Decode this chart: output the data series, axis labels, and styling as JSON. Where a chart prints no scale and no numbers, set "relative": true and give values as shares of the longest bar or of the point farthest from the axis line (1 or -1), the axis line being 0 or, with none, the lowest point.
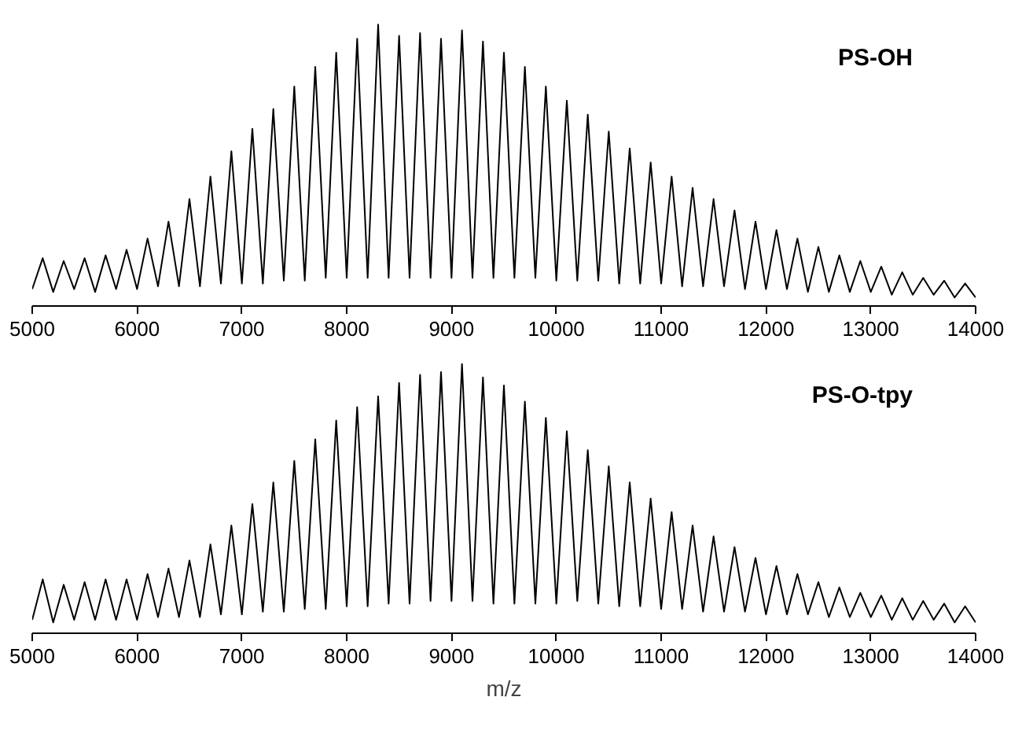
{
  "chart_data": [
    {
      "type": "line",
      "relative": true,
      "xlim": [
        5000,
        14000
      ],
      "xticks": [
        5000,
        6000,
        7000,
        8000,
        9000,
        10000,
        11000,
        12000,
        13000,
        14000
      ],
      "grid": false,
      "legend": false,
      "tick_labels": "x",
      "marker": "none",
      "line_style": "solid",
      "x": [
        5000,
        5100,
        5200,
        5300,
        5400,
        5500,
        5600,
        5700,
        5800,
        5900,
        6000,
        6100,
        6200,
        6300,
        6400,
        6500,
        6600,
        6700,
        6800,
        6900,
        7000,
        7100,
        7200,
        7300,
        7400,
        7500,
        7600,
        7700,
        7800,
        7900,
        8000,
        8100,
        8200,
        8300,
        8400,
        8500,
        8600,
        8700,
        8800,
        8900,
        9000,
        9100,
        9200,
        9300,
        9400,
        9500,
        9600,
        9700,
        9800,
        9900,
        10000,
        10100,
        10200,
        10300,
        10400,
        10500,
        10600,
        10700,
        10800,
        10900,
        11000,
        11100,
        11200,
        11300,
        11400,
        11500,
        11600,
        11700,
        11800,
        11900,
        12000,
        12100,
        12200,
        12300,
        12400,
        12500,
        12600,
        12700,
        12800,
        12900,
        13000,
        13100,
        13200,
        13300,
        13400,
        13500,
        13600,
        13700,
        13800,
        13900,
        14000
      ],
      "series": [
        {
          "name": "PS-OH",
          "color": "#000000",
          "values": [
            0.06,
            0.17,
            0.05,
            0.16,
            0.06,
            0.17,
            0.05,
            0.18,
            0.06,
            0.2,
            0.06,
            0.24,
            0.07,
            0.3,
            0.07,
            0.38,
            0.07,
            0.46,
            0.08,
            0.55,
            0.08,
            0.63,
            0.08,
            0.7,
            0.09,
            0.78,
            0.09,
            0.85,
            0.1,
            0.9,
            0.1,
            0.95,
            0.1,
            1.0,
            0.1,
            0.96,
            0.1,
            0.97,
            0.1,
            0.95,
            0.1,
            0.98,
            0.1,
            0.94,
            0.1,
            0.9,
            0.1,
            0.85,
            0.1,
            0.78,
            0.09,
            0.73,
            0.09,
            0.68,
            0.09,
            0.62,
            0.08,
            0.56,
            0.08,
            0.51,
            0.08,
            0.46,
            0.07,
            0.42,
            0.07,
            0.38,
            0.07,
            0.34,
            0.06,
            0.3,
            0.06,
            0.27,
            0.06,
            0.24,
            0.05,
            0.21,
            0.05,
            0.18,
            0.05,
            0.16,
            0.05,
            0.14,
            0.04,
            0.12,
            0.04,
            0.1,
            0.04,
            0.09,
            0.03,
            0.08,
            0.03
          ]
        }
      ]
    },
    {
      "type": "line",
      "relative": true,
      "xlim": [
        5000,
        14000
      ],
      "xticks": [
        5000,
        6000,
        7000,
        8000,
        9000,
        10000,
        11000,
        12000,
        13000,
        14000
      ],
      "xlabel": "m/z",
      "grid": false,
      "legend": false,
      "tick_labels": "x",
      "marker": "none",
      "line_style": "solid",
      "x": [
        5000,
        5100,
        5200,
        5300,
        5400,
        5500,
        5600,
        5700,
        5800,
        5900,
        6000,
        6100,
        6200,
        6300,
        6400,
        6500,
        6600,
        6700,
        6800,
        6900,
        7000,
        7100,
        7200,
        7300,
        7400,
        7500,
        7600,
        7700,
        7800,
        7900,
        8000,
        8100,
        8200,
        8300,
        8400,
        8500,
        8600,
        8700,
        8800,
        8900,
        9000,
        9100,
        9200,
        9300,
        9400,
        9500,
        9600,
        9700,
        9800,
        9900,
        10000,
        10100,
        10200,
        10300,
        10400,
        10500,
        10600,
        10700,
        10800,
        10900,
        11000,
        11100,
        11200,
        11300,
        11400,
        11500,
        11600,
        11700,
        11800,
        11900,
        12000,
        12100,
        12200,
        12300,
        12400,
        12500,
        12600,
        12700,
        12800,
        12900,
        13000,
        13100,
        13200,
        13300,
        13400,
        13500,
        13600,
        13700,
        13800,
        13900,
        14000
      ],
      "series": [
        {
          "name": "PS-O-tpy",
          "color": "#000000",
          "values": [
            0.05,
            0.2,
            0.04,
            0.18,
            0.05,
            0.19,
            0.05,
            0.2,
            0.05,
            0.2,
            0.05,
            0.22,
            0.06,
            0.24,
            0.06,
            0.27,
            0.06,
            0.33,
            0.07,
            0.4,
            0.07,
            0.48,
            0.08,
            0.56,
            0.08,
            0.64,
            0.09,
            0.72,
            0.09,
            0.79,
            0.1,
            0.84,
            0.1,
            0.88,
            0.11,
            0.93,
            0.11,
            0.96,
            0.12,
            0.97,
            0.12,
            1.0,
            0.12,
            0.95,
            0.11,
            0.92,
            0.11,
            0.86,
            0.11,
            0.8,
            0.11,
            0.75,
            0.12,
            0.68,
            0.11,
            0.62,
            0.1,
            0.56,
            0.1,
            0.5,
            0.09,
            0.45,
            0.09,
            0.4,
            0.08,
            0.36,
            0.08,
            0.32,
            0.08,
            0.28,
            0.07,
            0.25,
            0.07,
            0.22,
            0.07,
            0.19,
            0.06,
            0.17,
            0.06,
            0.15,
            0.06,
            0.14,
            0.05,
            0.13,
            0.05,
            0.12,
            0.05,
            0.11,
            0.04,
            0.1,
            0.04
          ]
        }
      ]
    }
  ]
}
